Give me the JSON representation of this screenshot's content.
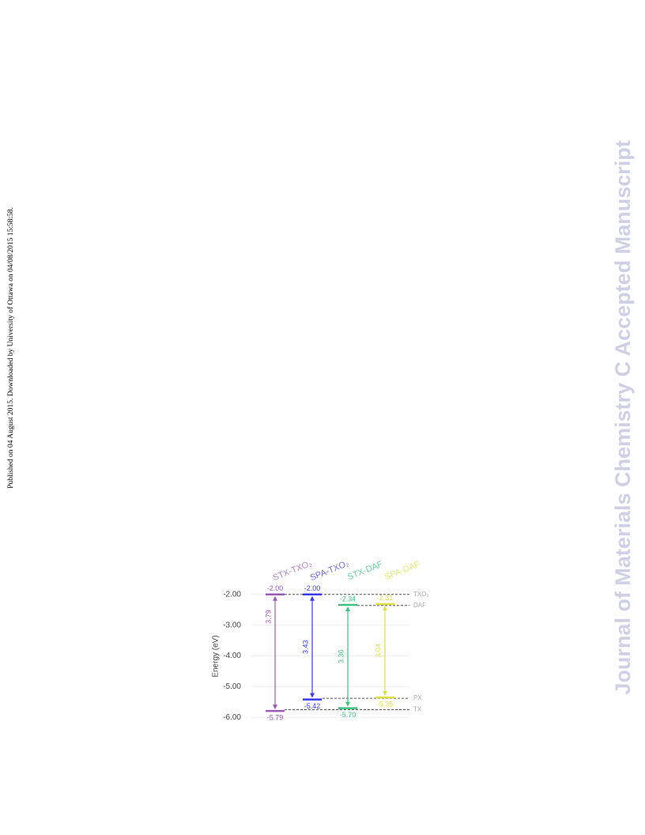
{
  "side_note": "Published on 04 August 2015. Downloaded by University of Ottawa on 04/08/2015 15:58:58.",
  "watermark": "Journal of Materials Chemistry C Accepted Manuscript",
  "chart_data": {
    "type": "energy-level",
    "y_label": "Energy (eV)",
    "categories": [
      "STX-TXO₂",
      "SPA-TXO₂",
      "STX-DAF",
      "SPA-DAF"
    ],
    "colors": [
      "#9b59b6",
      "#3b3bf0",
      "#3cc47c",
      "#e0e040"
    ],
    "lumo": {
      "values": [
        -2,
        -2,
        -2.34,
        -2.31
      ],
      "value_labels": [
        "-2.00",
        "-2.00",
        "-2.34",
        "-2.31"
      ]
    },
    "homo": {
      "values": [
        -5.79,
        -5.42,
        -5.7,
        -5.35
      ],
      "value_labels": [
        "-5.79",
        "-5.42",
        "-5.70",
        "-5.35"
      ]
    },
    "gap": {
      "values": [
        3.79,
        3.43,
        3.36,
        3.04
      ]
    },
    "reference_lines": [
      {
        "label": "TXO₂",
        "value": -2
      },
      {
        "label": "DAF",
        "value": -2.36
      },
      {
        "label": "PX",
        "value": -5.38
      },
      {
        "label": "TX",
        "value": -5.75
      }
    ],
    "ylim": [
      -6.2,
      -1.8
    ],
    "yticks": [
      {
        "value": -2,
        "label": "-2.00"
      },
      {
        "value": -3,
        "label": "-3.00"
      },
      {
        "value": -4,
        "label": "-4.00"
      },
      {
        "value": -5,
        "label": "-5.00"
      },
      {
        "value": -6,
        "label": "-6.00"
      }
    ],
    "grid": true
  }
}
